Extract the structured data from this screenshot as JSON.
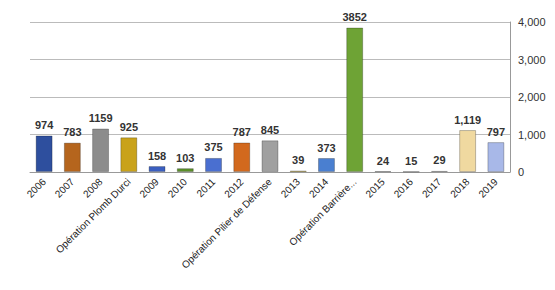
{
  "chart_data": {
    "type": "bar",
    "categories": [
      "2006",
      "2007",
      "2008",
      "Opération Plomb Durci",
      "2009",
      "2010",
      "2011",
      "2012",
      "Opération Pilier de Défense",
      "2013",
      "2014",
      "Opération Barrière...",
      "2015",
      "2016",
      "2017",
      "2018",
      "2019"
    ],
    "values": [
      974,
      783,
      1159,
      925,
      158,
      103,
      375,
      787,
      845,
      39,
      373,
      3852,
      24,
      15,
      29,
      1119,
      797
    ],
    "value_labels": [
      "974",
      "783",
      "1159",
      "925",
      "158",
      "103",
      "375",
      "787",
      "845",
      "39",
      "373",
      "3852",
      "24",
      "15",
      "29",
      "1,119",
      "797"
    ],
    "colors": [
      "#2e4f9e",
      "#b5651d",
      "#8c8c8c",
      "#c9a21a",
      "#3b5fc0",
      "#5a8f29",
      "#4a6fd0",
      "#d2691e",
      "#a0a0a0",
      "#d4b020",
      "#4a7fd0",
      "#6ea335",
      "#8f96d8",
      "#d8b08c",
      "#c8c8c8",
      "#f0d9a0",
      "#a8b8e8"
    ],
    "ylim": [
      0,
      4000
    ],
    "yticks": [
      0,
      1000,
      2000,
      3000,
      4000
    ],
    "grid": true,
    "data_labels": true
  }
}
